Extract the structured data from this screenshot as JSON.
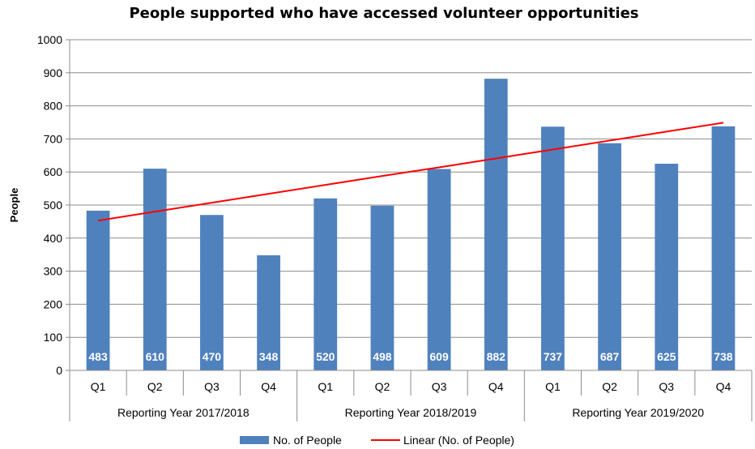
{
  "chart_data": {
    "type": "bar",
    "title": "People supported who have accessed volunteer opportunities",
    "ylabel": "People",
    "ylim": [
      0,
      1000
    ],
    "yticks": [
      0,
      100,
      200,
      300,
      400,
      500,
      600,
      700,
      800,
      900,
      1000
    ],
    "grid": true,
    "legend_position": "bottom",
    "colors": {
      "bar": "#4F81BD",
      "trend": "#FF0000"
    },
    "groups": [
      {
        "label": "Reporting Year 2017/2018",
        "quarters": [
          "Q1",
          "Q2",
          "Q3",
          "Q4"
        ]
      },
      {
        "label": "Reporting Year 2018/2019",
        "quarters": [
          "Q1",
          "Q2",
          "Q3",
          "Q4"
        ]
      },
      {
        "label": "Reporting Year 2019/2020",
        "quarters": [
          "Q1",
          "Q2",
          "Q3",
          "Q4"
        ]
      }
    ],
    "series": [
      {
        "name": "No. of People",
        "type": "bar",
        "values": [
          483,
          610,
          470,
          348,
          520,
          498,
          609,
          882,
          737,
          687,
          625,
          738
        ]
      },
      {
        "name": "Linear (No. of People)",
        "type": "trendline",
        "values": [
          453,
          480,
          507,
          534,
          561,
          588,
          614,
          641,
          668,
          695,
          722,
          749
        ]
      }
    ]
  }
}
